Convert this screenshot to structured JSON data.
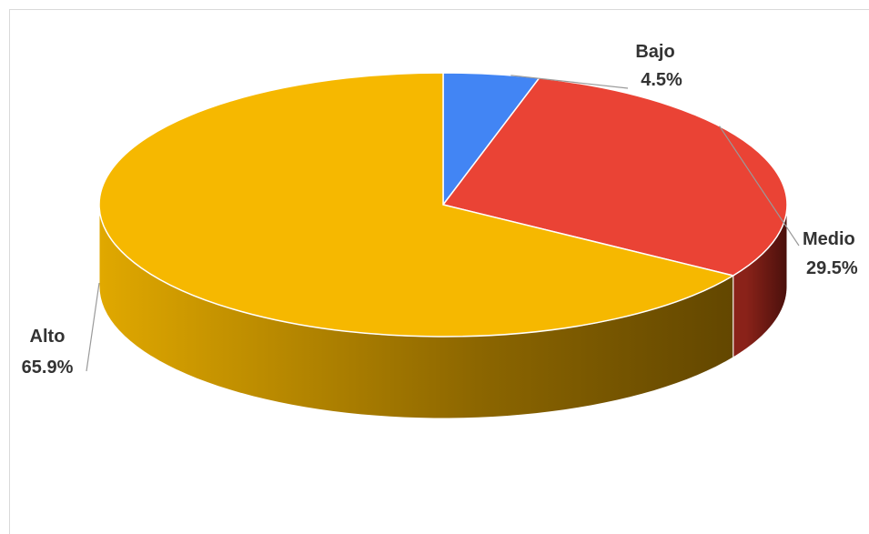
{
  "chart_data": {
    "type": "pie",
    "title": "",
    "categories": [
      "Bajo",
      "Medio",
      "Alto"
    ],
    "values": [
      4.5,
      29.5,
      65.9
    ],
    "labels": [
      "4.5%",
      "29.5%",
      "65.9%"
    ],
    "colors": [
      "#4285f4",
      "#ea4335",
      "#f6b800"
    ],
    "side_colors": [
      "#2f5fb0",
      "#6b1a14",
      "#b38600"
    ],
    "style": "3d",
    "legend": "none"
  }
}
